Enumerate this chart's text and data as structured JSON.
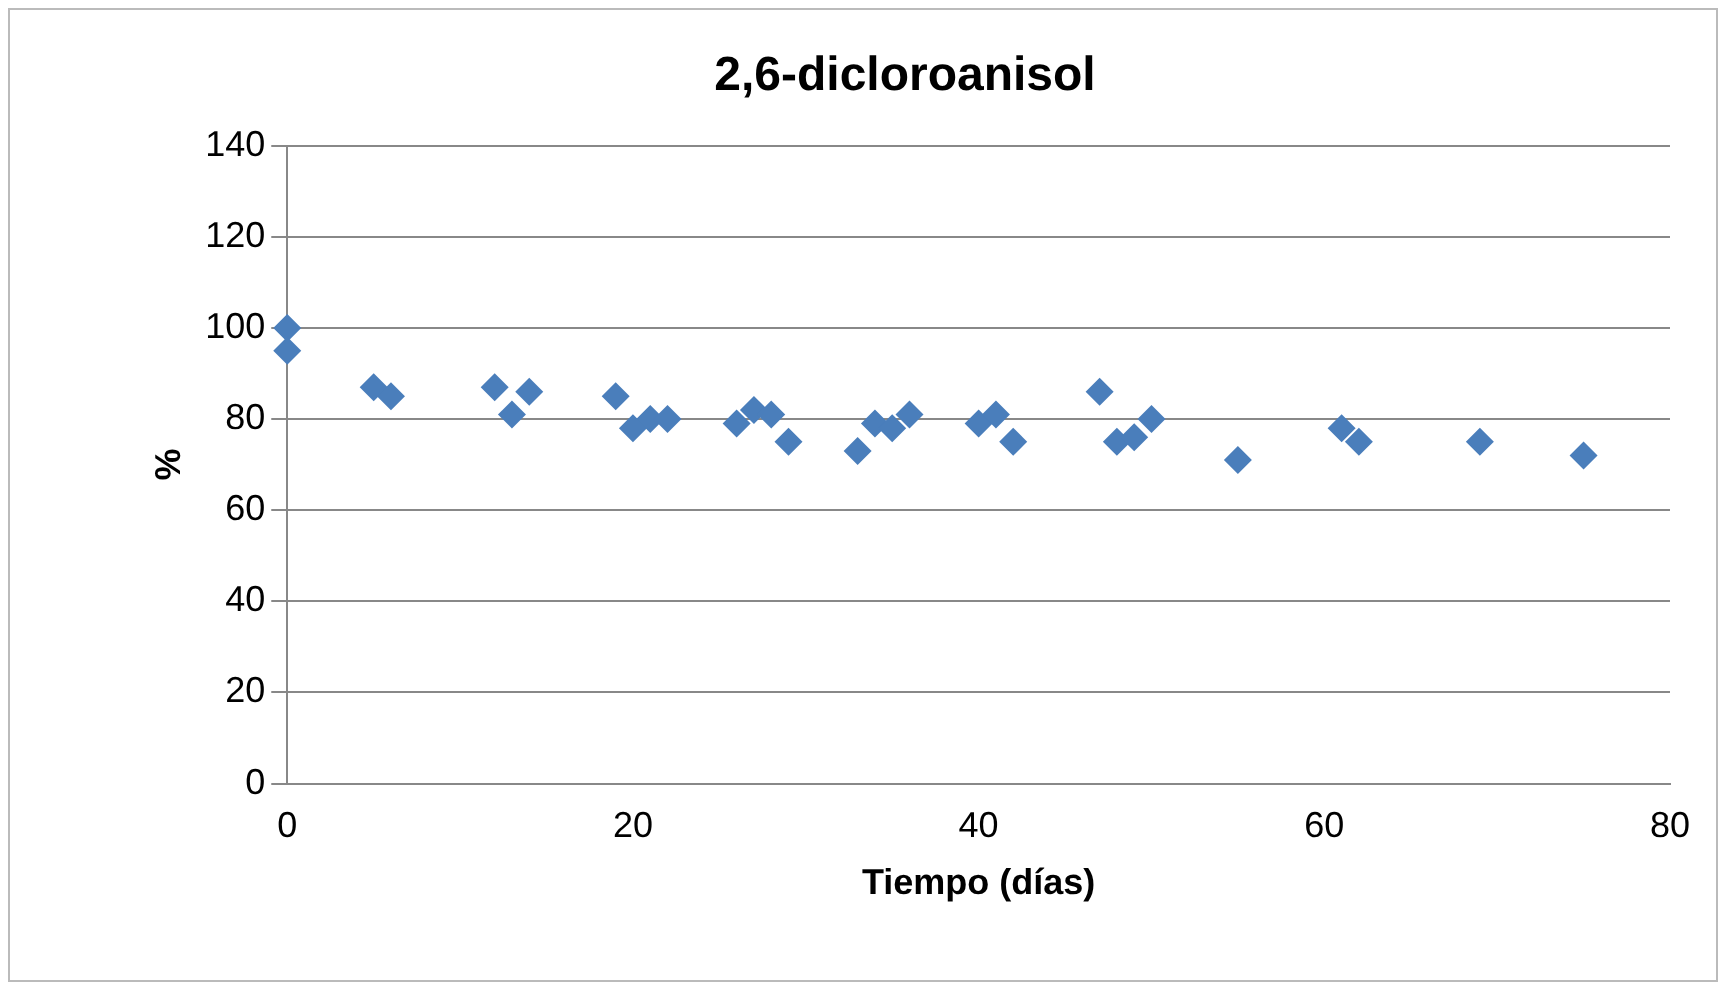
{
  "chart_data": {
    "type": "scatter",
    "title": "2,6-dicloroanisol",
    "xlabel": "Tiempo (días)",
    "ylabel": "%",
    "x": [
      0,
      0,
      5,
      6,
      12,
      13,
      14,
      19,
      20,
      21,
      22,
      26,
      27,
      28,
      29,
      33,
      34,
      35,
      36,
      40,
      41,
      42,
      47,
      48,
      49,
      50,
      55,
      61,
      62,
      69,
      75
    ],
    "series": [
      {
        "color": "#4a7ebb",
        "values": [
          100,
          95,
          87,
          85,
          87,
          81,
          86,
          85,
          78,
          80,
          80,
          79,
          82,
          81,
          75,
          73,
          79,
          78,
          81,
          79,
          81,
          75,
          86,
          75,
          76,
          80,
          71,
          78,
          75,
          75,
          72
        ]
      }
    ],
    "xlim": [
      0,
      80
    ],
    "xticks": [
      0,
      20,
      40,
      60,
      80
    ],
    "ylim": [
      0,
      140
    ],
    "yticks": [
      0,
      20,
      40,
      60,
      80,
      100,
      120,
      140
    ],
    "grid": "y",
    "legend": false,
    "marker": "diamond"
  }
}
